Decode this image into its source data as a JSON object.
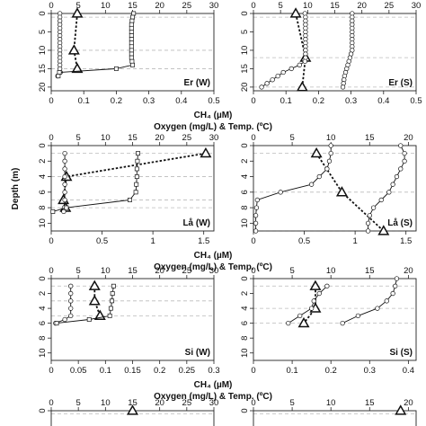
{
  "axis_titles": {
    "ch4": "CH₄ (µM)",
    "oxygen_temp": "Oxygen (mg/L) & Temp. (ºC)",
    "depth": "Depth (m)"
  },
  "chart_data": [
    {
      "type": "line",
      "panel_label": "Er (W)",
      "ch4_axis": {
        "ticks": [
          "0",
          "0.1",
          "0.2",
          "0.3",
          "0.4",
          "0.5"
        ],
        "lim": [
          0,
          0.5
        ]
      },
      "ot_axis": {
        "ticks": [
          "0",
          "5",
          "10",
          "15",
          "20",
          "25",
          "30"
        ],
        "lim": [
          0,
          30
        ]
      },
      "depth_axis": {
        "ticks": [
          "0",
          "5",
          "10",
          "15",
          "20"
        ],
        "lim": [
          0,
          21
        ],
        "reversed": true
      },
      "depth_lines": [
        1,
        10,
        15
      ],
      "series": [
        {
          "axis": "ch4",
          "marker": "triangle",
          "line": "dashed",
          "points": [
            [
              0.08,
              0
            ],
            [
              0.07,
              10
            ],
            [
              0.08,
              15
            ]
          ]
        },
        {
          "axis": "ot",
          "marker": "circle",
          "line": "solid",
          "points": [
            [
              1.6,
              0
            ],
            [
              1.6,
              1
            ],
            [
              1.6,
              2
            ],
            [
              1.6,
              3
            ],
            [
              1.6,
              4
            ],
            [
              1.6,
              5
            ],
            [
              1.6,
              6
            ],
            [
              1.6,
              7
            ],
            [
              1.6,
              8
            ],
            [
              1.6,
              9
            ],
            [
              1.6,
              10
            ],
            [
              1.6,
              11
            ],
            [
              1.6,
              12
            ],
            [
              1.6,
              13
            ],
            [
              1.6,
              14
            ],
            [
              1.6,
              15
            ],
            [
              1.7,
              16
            ],
            [
              1.2,
              17
            ]
          ]
        },
        {
          "axis": "ot",
          "marker": "square",
          "line": "solid",
          "points": [
            [
              15.2,
              0
            ],
            [
              15.0,
              1
            ],
            [
              14.9,
              2
            ],
            [
              14.8,
              3
            ],
            [
              14.8,
              4
            ],
            [
              14.8,
              5
            ],
            [
              14.8,
              6
            ],
            [
              14.8,
              7
            ],
            [
              14.8,
              8
            ],
            [
              14.8,
              9
            ],
            [
              14.8,
              10
            ],
            [
              14.8,
              11
            ],
            [
              14.8,
              12
            ],
            [
              14.9,
              13
            ],
            [
              15.0,
              14
            ],
            [
              12.0,
              15
            ],
            [
              1.5,
              16
            ],
            [
              1.3,
              17
            ]
          ]
        }
      ]
    },
    {
      "type": "line",
      "panel_label": "Er (S)",
      "ch4_axis": {
        "ticks": [
          "0",
          "0.1",
          "0.2",
          "0.3",
          "0.4",
          "0.5"
        ],
        "lim": [
          0,
          0.5
        ]
      },
      "ot_axis": {
        "ticks": [
          "0",
          "5",
          "10",
          "15",
          "20",
          "25",
          "30"
        ],
        "lim": [
          0,
          30
        ]
      },
      "depth_axis": {
        "ticks": [
          "0",
          "5",
          "10",
          "15",
          "20"
        ],
        "lim": [
          0,
          21
        ],
        "reversed": true
      },
      "depth_lines": [
        1,
        12,
        20
      ],
      "series": [
        {
          "axis": "ch4",
          "marker": "triangle",
          "line": "dashed",
          "points": [
            [
              0.13,
              0
            ],
            [
              0.16,
              12
            ],
            [
              0.15,
              20
            ]
          ]
        },
        {
          "axis": "ot",
          "marker": "circle",
          "line": "solid",
          "points": [
            [
              9.5,
              0
            ],
            [
              9.6,
              1
            ],
            [
              9.6,
              2
            ],
            [
              9.6,
              3
            ],
            [
              9.6,
              4
            ],
            [
              9.6,
              5
            ],
            [
              9.6,
              6
            ],
            [
              9.6,
              7
            ],
            [
              9.6,
              8
            ],
            [
              9.6,
              9
            ],
            [
              9.6,
              10
            ],
            [
              9.6,
              11
            ],
            [
              9.6,
              12
            ],
            [
              9.5,
              13
            ],
            [
              8.5,
              14
            ],
            [
              7.0,
              15
            ],
            [
              5.5,
              16
            ],
            [
              4.5,
              17
            ],
            [
              3.5,
              18
            ],
            [
              2.5,
              19
            ],
            [
              1.5,
              20
            ]
          ]
        },
        {
          "axis": "ot",
          "marker": "circle",
          "line": "solid",
          "points": [
            [
              18.2,
              0
            ],
            [
              18.2,
              1
            ],
            [
              18.2,
              2
            ],
            [
              18.2,
              3
            ],
            [
              18.2,
              4
            ],
            [
              18.2,
              5
            ],
            [
              18.2,
              6
            ],
            [
              18.2,
              7
            ],
            [
              18.2,
              8
            ],
            [
              18.2,
              9
            ],
            [
              18.2,
              10
            ],
            [
              18.0,
              11
            ],
            [
              17.8,
              12
            ],
            [
              17.6,
              13
            ],
            [
              17.4,
              14
            ],
            [
              17.2,
              15
            ],
            [
              17.0,
              16
            ],
            [
              16.8,
              17
            ],
            [
              16.7,
              18
            ],
            [
              16.6,
              19
            ],
            [
              16.5,
              20
            ]
          ]
        }
      ]
    },
    {
      "type": "line",
      "panel_label": "Lå (W)",
      "ch4_axis": {
        "ticks": [
          "0",
          "0.5",
          "1",
          "1.5"
        ],
        "lim": [
          0,
          1.6
        ]
      },
      "ot_axis": {
        "ticks": [
          "0",
          "5",
          "10",
          "15",
          "20",
          "25",
          "30"
        ],
        "lim": [
          0,
          30
        ]
      },
      "depth_axis": {
        "ticks": [
          "0",
          "2",
          "4",
          "6",
          "8",
          "10"
        ],
        "lim": [
          0,
          11
        ],
        "reversed": true
      },
      "depth_lines": [
        1,
        4,
        7,
        8
      ],
      "series": [
        {
          "axis": "ch4",
          "marker": "triangle",
          "line": "dashed",
          "points": [
            [
              1.52,
              1
            ],
            [
              0.15,
              4
            ],
            [
              0.12,
              7
            ],
            [
              0.14,
              8
            ]
          ]
        },
        {
          "axis": "ot",
          "marker": "circle",
          "line": "solid",
          "points": [
            [
              2.5,
              1
            ],
            [
              2.5,
              2
            ],
            [
              2.5,
              3
            ],
            [
              2.5,
              4
            ],
            [
              2.5,
              5
            ],
            [
              2.5,
              6
            ],
            [
              2.5,
              7
            ],
            [
              2.4,
              8
            ],
            [
              2.3,
              8.5
            ]
          ]
        },
        {
          "axis": "ot",
          "marker": "square",
          "line": "solid",
          "points": [
            [
              16.0,
              1
            ],
            [
              15.9,
              2
            ],
            [
              15.8,
              3
            ],
            [
              15.8,
              4
            ],
            [
              15.7,
              5
            ],
            [
              15.6,
              6
            ],
            [
              14.5,
              7
            ],
            [
              2.8,
              8
            ],
            [
              0.3,
              8.5
            ]
          ]
        }
      ]
    },
    {
      "type": "line",
      "panel_label": "Lå (S)",
      "ch4_axis": {
        "ticks": [
          "0",
          "0.5",
          "1",
          "1.5"
        ],
        "lim": [
          0,
          1.6
        ]
      },
      "ot_axis": {
        "ticks": [
          "0",
          "5",
          "10",
          "15",
          "20"
        ],
        "lim": [
          0,
          21
        ]
      },
      "depth_axis": {
        "ticks": [
          "0",
          "2",
          "4",
          "6",
          "8",
          "10"
        ],
        "lim": [
          0,
          11
        ],
        "reversed": true
      },
      "depth_lines": [
        1,
        6,
        11
      ],
      "series": [
        {
          "axis": "ch4",
          "marker": "triangle",
          "line": "dashed",
          "points": [
            [
              0.62,
              1
            ],
            [
              0.87,
              6
            ],
            [
              1.28,
              11
            ]
          ]
        },
        {
          "axis": "ot",
          "marker": "circle",
          "line": "solid",
          "points": [
            [
              10.0,
              0
            ],
            [
              10.0,
              1
            ],
            [
              9.8,
              2
            ],
            [
              9.5,
              3
            ],
            [
              8.5,
              4
            ],
            [
              7.5,
              5
            ],
            [
              3.5,
              6
            ],
            [
              0.5,
              7
            ],
            [
              0.4,
              8
            ],
            [
              0.3,
              9
            ],
            [
              0.3,
              10
            ],
            [
              0.3,
              11
            ]
          ]
        },
        {
          "axis": "ot",
          "marker": "circle",
          "line": "solid",
          "points": [
            [
              19.0,
              0
            ],
            [
              19.5,
              1
            ],
            [
              19.5,
              2
            ],
            [
              19.0,
              3
            ],
            [
              18.5,
              4
            ],
            [
              18.0,
              5
            ],
            [
              17.5,
              6
            ],
            [
              16.5,
              7
            ],
            [
              15.5,
              8
            ],
            [
              15.0,
              9
            ],
            [
              14.8,
              10
            ],
            [
              14.8,
              11
            ]
          ]
        }
      ]
    },
    {
      "type": "line",
      "panel_label": "Si (W)",
      "ch4_axis": {
        "ticks": [
          "0",
          "0.05",
          "0.1",
          "0.15",
          "0.2",
          "0.25",
          "0.3"
        ],
        "lim": [
          0,
          0.3
        ]
      },
      "ot_axis": {
        "ticks": [
          "0",
          "5",
          "10",
          "15",
          "20",
          "25",
          "30"
        ],
        "lim": [
          0,
          30
        ]
      },
      "depth_axis": {
        "ticks": [
          "0",
          "2",
          "4",
          "6",
          "8",
          "10"
        ],
        "lim": [
          0,
          11
        ],
        "reversed": true
      },
      "depth_lines": [
        1,
        3,
        5
      ],
      "series": [
        {
          "axis": "ch4",
          "marker": "triangle",
          "line": "dashed",
          "points": [
            [
              0.08,
              1
            ],
            [
              0.08,
              3
            ],
            [
              0.09,
              5
            ]
          ]
        },
        {
          "axis": "ot",
          "marker": "circle",
          "line": "solid",
          "points": [
            [
              3.6,
              1
            ],
            [
              3.6,
              2
            ],
            [
              3.6,
              3
            ],
            [
              3.6,
              4
            ],
            [
              3.6,
              5
            ],
            [
              2.5,
              5.5
            ],
            [
              0.8,
              6
            ]
          ]
        },
        {
          "axis": "ot",
          "marker": "square",
          "line": "solid",
          "points": [
            [
              11.5,
              1
            ],
            [
              11.3,
              2
            ],
            [
              11.2,
              3
            ],
            [
              11.0,
              4
            ],
            [
              10.8,
              5
            ],
            [
              7.0,
              5.5
            ],
            [
              1.0,
              6
            ]
          ]
        }
      ]
    },
    {
      "type": "line",
      "panel_label": "Si (S)",
      "ch4_axis": {
        "ticks": [
          "0",
          "0.1",
          "0.2",
          "0.3",
          "0.4"
        ],
        "lim": [
          0,
          0.42
        ]
      },
      "ot_axis": {
        "ticks": [
          "0",
          "5",
          "10",
          "15",
          "20"
        ],
        "lim": [
          0,
          21
        ]
      },
      "depth_axis": {
        "ticks": [
          "0",
          "2",
          "4",
          "6",
          "8",
          "10"
        ],
        "lim": [
          0,
          11
        ],
        "reversed": true
      },
      "depth_lines": [
        1,
        4,
        6
      ],
      "series": [
        {
          "axis": "ch4",
          "marker": "triangle",
          "line": "dashed",
          "points": [
            [
              0.16,
              1
            ],
            [
              0.16,
              4
            ],
            [
              0.13,
              6
            ]
          ]
        },
        {
          "axis": "ot",
          "marker": "circle",
          "line": "solid",
          "points": [
            [
              9.5,
              1
            ],
            [
              8.5,
              2
            ],
            [
              7.8,
              3
            ],
            [
              7.5,
              4
            ],
            [
              6.0,
              5
            ],
            [
              4.5,
              6
            ]
          ]
        },
        {
          "axis": "ot",
          "marker": "circle",
          "line": "solid",
          "points": [
            [
              18.5,
              0
            ],
            [
              18.3,
              1
            ],
            [
              18.0,
              2
            ],
            [
              17.2,
              3
            ],
            [
              16.0,
              4
            ],
            [
              13.5,
              5
            ],
            [
              11.5,
              6
            ]
          ]
        }
      ]
    },
    {
      "type": "line",
      "panel_label": "",
      "ot_axis": {
        "ticks": [
          "0",
          "5",
          "10",
          "15",
          "20",
          "25",
          "30"
        ],
        "lim": [
          0,
          30
        ]
      },
      "depth_axis": {
        "ticks": [
          "0"
        ],
        "lim": [
          0,
          11
        ],
        "reversed": true
      },
      "depth_lines": [
        1
      ],
      "series": [
        {
          "axis": "ch4",
          "marker": "triangle",
          "line": "dashed",
          "points": [
            [
              0.15,
              0
            ]
          ]
        }
      ],
      "ch4_axis": {
        "ticks": [],
        "lim": [
          0,
          0.3
        ]
      }
    },
    {
      "type": "line",
      "panel_label": "",
      "ot_axis": {
        "ticks": [
          "0",
          "5",
          "10",
          "15",
          "20"
        ],
        "lim": [
          0,
          21
        ]
      },
      "depth_axis": {
        "ticks": [
          "0"
        ],
        "lim": [
          0,
          11
        ],
        "reversed": true
      },
      "depth_lines": [
        1
      ],
      "series": [
        {
          "axis": "ch4",
          "marker": "triangle",
          "line": "dashed",
          "points": [
            [
              0.38,
              0
            ]
          ]
        }
      ],
      "ch4_axis": {
        "ticks": [],
        "lim": [
          0,
          0.42
        ]
      }
    }
  ]
}
